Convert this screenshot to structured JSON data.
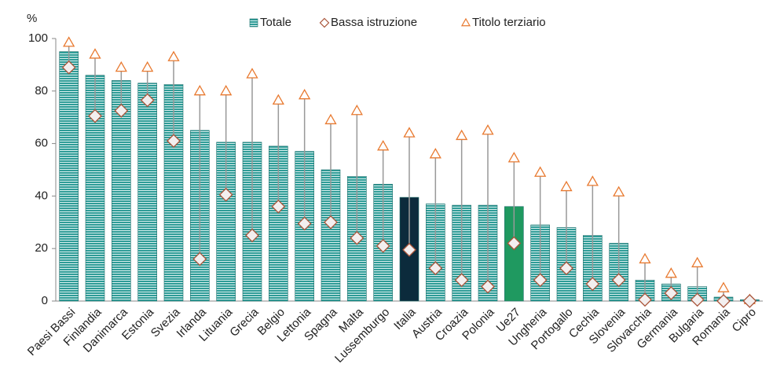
{
  "chart_data": {
    "type": "bar",
    "y_unit": "%",
    "categories": [
      "Paesi Bassi",
      "Finlandia",
      "Danimarca",
      "Estonia",
      "Svezia",
      "Irlanda",
      "Lituania",
      "Grecia",
      "Belgio",
      "Lettonia",
      "Spagna",
      "Malta",
      "Lussemburgo",
      "Italia",
      "Austria",
      "Croazia",
      "Polonia",
      "Ue27",
      "Ungheria",
      "Portogallo",
      "Cechia",
      "Slovenia",
      "Slovacchia",
      "Germania",
      "Bulgaria",
      "Romania",
      "Cipro"
    ],
    "series": [
      {
        "name": "Totale",
        "kind": "bar",
        "color": "#2f9c97",
        "bar_colors": [
          "#2f9c97",
          "#2f9c97",
          "#2f9c97",
          "#2f9c97",
          "#2f9c97",
          "#2f9c97",
          "#2f9c97",
          "#2f9c97",
          "#2f9c97",
          "#2f9c97",
          "#2f9c97",
          "#2f9c97",
          "#2f9c97",
          "#0c2b3c",
          "#2f9c97",
          "#2f9c97",
          "#2f9c97",
          "#1f9960",
          "#2f9c97",
          "#2f9c97",
          "#2f9c97",
          "#2f9c97",
          "#2f9c97",
          "#2f9c97",
          "#2f9c97",
          "#2f9c97",
          "#2f9c97"
        ],
        "values": [
          95,
          86,
          84,
          83,
          82.5,
          65,
          60.5,
          60.5,
          59,
          57,
          50,
          47.5,
          44.5,
          39.5,
          37,
          36.5,
          36.5,
          36,
          29,
          28,
          25,
          22,
          8,
          6.5,
          5.5,
          1.5,
          0.5
        ]
      },
      {
        "name": "Bassa istruzione",
        "kind": "diamond",
        "color": "#a9553a",
        "values": [
          89,
          70.5,
          72.5,
          76.5,
          61,
          16,
          40.5,
          25,
          36,
          29.5,
          30,
          24,
          21,
          19.5,
          12.5,
          8,
          5.5,
          22,
          8,
          12.5,
          6.5,
          8,
          0.5,
          3,
          0.5,
          0,
          0
        ]
      },
      {
        "name": "Titolo terziario",
        "kind": "triangle",
        "color": "#e8792f",
        "values": [
          98.5,
          94,
          89,
          89,
          93,
          80,
          80,
          86.5,
          76.5,
          78.5,
          69,
          72.5,
          59,
          64,
          56,
          63,
          65,
          54.5,
          49,
          43.5,
          45.5,
          41.5,
          16,
          10.5,
          14.5,
          5,
          0.5
        ]
      }
    ],
    "ylim": [
      0,
      100
    ],
    "yticks": [
      0,
      20,
      40,
      60,
      80,
      100
    ],
    "grid": false,
    "legend": "top"
  }
}
